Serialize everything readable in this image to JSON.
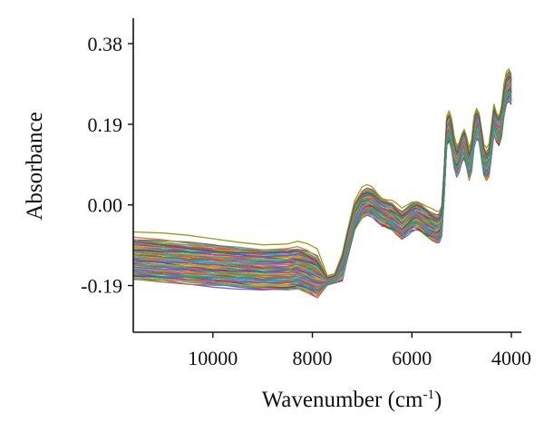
{
  "chart_data": {
    "type": "line",
    "xlabel_main": "Wavenumber (cm",
    "xlabel_sup": "-1",
    "xlabel_close": ")",
    "ylabel": "Absorbance",
    "x_reversed": true,
    "xlim": [
      11600,
      3800
    ],
    "ylim": [
      -0.3,
      0.44
    ],
    "x_ticks": [
      10000,
      8000,
      6000,
      4000
    ],
    "x_tick_labels": [
      "10000",
      "8000",
      "6000",
      "4000"
    ],
    "y_ticks": [
      0.38,
      0.19,
      0.0,
      -0.19
    ],
    "y_tick_labels": [
      "0.38",
      "0.19",
      "0.00",
      "-0.19"
    ],
    "grid": false,
    "legend": "none",
    "base_spectrum": {
      "x": [
        11600,
        11000,
        10500,
        10000,
        9500,
        9000,
        8500,
        8300,
        8100,
        7900,
        7700,
        7550,
        7400,
        7300,
        7150,
        7000,
        6900,
        6800,
        6700,
        6600,
        6500,
        6400,
        6300,
        6200,
        6100,
        6000,
        5900,
        5800,
        5700,
        5600,
        5500,
        5450,
        5400,
        5350,
        5300,
        5250,
        5200,
        5150,
        5100,
        5050,
        5000,
        4950,
        4900,
        4850,
        4800,
        4750,
        4700,
        4650,
        4600,
        4550,
        4500,
        4450,
        4400,
        4350,
        4300,
        4250,
        4200,
        4150,
        4100,
        4050,
        4000
      ],
      "y": [
        -0.13,
        -0.135,
        -0.14,
        -0.145,
        -0.15,
        -0.155,
        -0.155,
        -0.152,
        -0.16,
        -0.172,
        -0.18,
        -0.175,
        -0.15,
        -0.1,
        -0.03,
        0.0,
        0.006,
        0.004,
        -0.008,
        -0.02,
        -0.025,
        -0.03,
        -0.04,
        -0.05,
        -0.04,
        -0.03,
        -0.028,
        -0.035,
        -0.045,
        -0.052,
        -0.058,
        -0.055,
        -0.04,
        0.05,
        0.17,
        0.18,
        0.16,
        0.12,
        0.1,
        0.11,
        0.13,
        0.14,
        0.12,
        0.09,
        0.11,
        0.17,
        0.19,
        0.18,
        0.14,
        0.1,
        0.09,
        0.1,
        0.15,
        0.2,
        0.18,
        0.17,
        0.19,
        0.24,
        0.27,
        0.28,
        0.27
      ]
    },
    "series_colors": [
      "#5b6fd6",
      "#e85a2b",
      "#3aa655",
      "#b03ab0",
      "#2ea8a0",
      "#d6a01e",
      "#555555",
      "#8db33a",
      "#c9398a",
      "#3a78c9",
      "#e08a3a",
      "#7a4fc2",
      "#2d9e6e",
      "#b5542e",
      "#4fa3d6",
      "#9c9c2a",
      "#d64f6a",
      "#3ab59c",
      "#6b6b6b",
      "#c27f3a"
    ],
    "series_count": 60,
    "series_offset_range": [
      -0.045,
      0.05
    ],
    "series_offset_growth_per_cm1": 3e-05,
    "emphasized_series": [
      {
        "color": "#9a9a1e",
        "offset": 0.065,
        "note": ""
      },
      {
        "color": "#5a5a5a",
        "offset": 0.04,
        "note": ""
      },
      {
        "color": "#2e9e86",
        "offset": -0.025,
        "note": ""
      }
    ]
  }
}
